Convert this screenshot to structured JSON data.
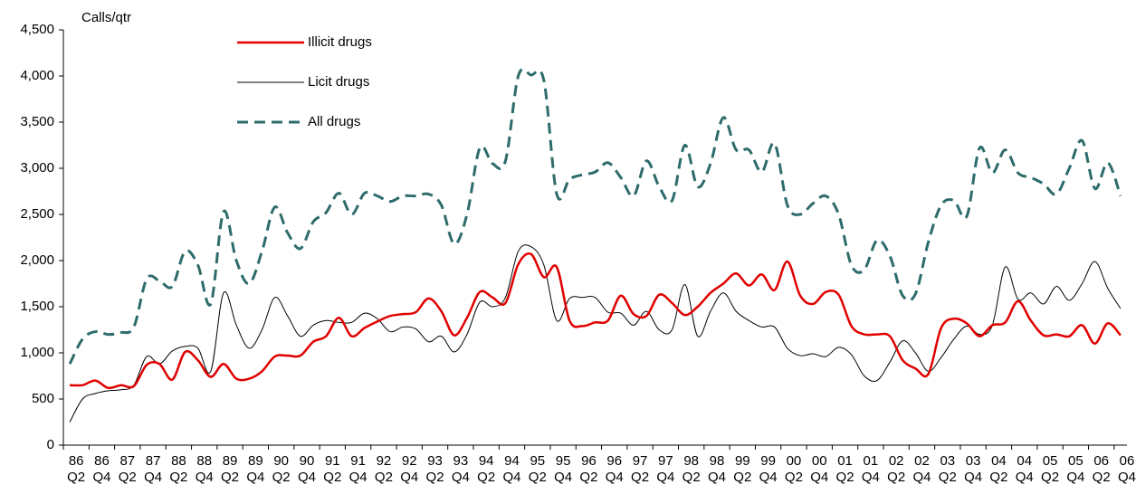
{
  "chart_data": {
    "type": "line",
    "y_label": "Calls/qtr",
    "categories": [
      "86 Q2",
      null,
      "86 Q4",
      null,
      "87 Q2",
      null,
      "87 Q4",
      null,
      "88 Q2",
      null,
      "88 Q4",
      null,
      "89 Q2",
      null,
      "89 Q4",
      null,
      "90 Q2",
      null,
      "90 Q4",
      null,
      "91 Q2",
      null,
      "91 Q4",
      null,
      "92 Q2",
      null,
      "92 Q4",
      null,
      "93 Q2",
      null,
      "93 Q4",
      null,
      "94 Q2",
      null,
      "94 Q4",
      null,
      "95 Q2",
      null,
      "95 Q4",
      null,
      "96 Q2",
      null,
      "96 Q4",
      null,
      "97 Q2",
      null,
      "97 Q4",
      null,
      "98 Q2",
      null,
      "98 Q4",
      null,
      "99 Q2",
      null,
      "99 Q4",
      null,
      "00 Q2",
      null,
      "00 Q4",
      null,
      "01 Q2",
      null,
      "01 Q4",
      null,
      "02 Q2",
      null,
      "02 Q4",
      null,
      "03 Q2",
      null,
      "03 Q4",
      null,
      "04 Q2",
      null,
      "04 Q4",
      null,
      "05 Q2",
      null,
      "05 Q4",
      null,
      "06 Q2",
      null,
      "06 Q4"
    ],
    "series": [
      {
        "name": "Illicit drugs",
        "color": "#e00000",
        "values": [
          650,
          650,
          700,
          620,
          650,
          640,
          870,
          880,
          710,
          1010,
          920,
          740,
          880,
          720,
          720,
          800,
          960,
          970,
          970,
          1120,
          1180,
          1380,
          1180,
          1270,
          1340,
          1400,
          1420,
          1440,
          1590,
          1450,
          1190,
          1380,
          1660,
          1600,
          1540,
          1960,
          2070,
          1820,
          1930,
          1350,
          1290,
          1330,
          1350,
          1620,
          1420,
          1400,
          1630,
          1540,
          1410,
          1500,
          1650,
          1750,
          1860,
          1730,
          1850,
          1680,
          1990,
          1620,
          1530,
          1660,
          1630,
          1290,
          1200,
          1200,
          1180,
          920,
          830,
          770,
          1270,
          1370,
          1320,
          1180,
          1300,
          1330,
          1560,
          1350,
          1190,
          1200,
          1180,
          1300,
          1100,
          1320,
          1190
        ]
      },
      {
        "name": "Licit drugs",
        "color": "#000000",
        "values": [
          250,
          500,
          560,
          590,
          600,
          650,
          960,
          880,
          1020,
          1070,
          1050,
          800,
          1650,
          1300,
          1050,
          1250,
          1600,
          1400,
          1180,
          1300,
          1350,
          1330,
          1330,
          1430,
          1370,
          1230,
          1280,
          1260,
          1120,
          1180,
          1010,
          1200,
          1550,
          1500,
          1600,
          2100,
          2150,
          1950,
          1350,
          1590,
          1600,
          1600,
          1440,
          1430,
          1300,
          1450,
          1250,
          1250,
          1740,
          1180,
          1450,
          1650,
          1450,
          1350,
          1280,
          1280,
          1050,
          970,
          990,
          960,
          1060,
          980,
          750,
          700,
          900,
          1130,
          1000,
          800,
          950,
          1150,
          1290,
          1200,
          1300,
          1930,
          1580,
          1650,
          1530,
          1720,
          1570,
          1750,
          1990,
          1700,
          1480
        ]
      },
      {
        "name": "All drugs",
        "color": "#2e6b6b",
        "values": [
          880,
          1150,
          1230,
          1200,
          1220,
          1280,
          1800,
          1780,
          1720,
          2100,
          1950,
          1530,
          2530,
          2000,
          1750,
          2100,
          2580,
          2300,
          2130,
          2420,
          2520,
          2730,
          2500,
          2730,
          2700,
          2640,
          2700,
          2700,
          2720,
          2600,
          2180,
          2500,
          3220,
          3050,
          3080,
          4000,
          4010,
          3950,
          2720,
          2880,
          2930,
          2960,
          3060,
          2900,
          2700,
          3080,
          2800,
          2650,
          3250,
          2800,
          3050,
          3550,
          3200,
          3200,
          2960,
          3270,
          2600,
          2500,
          2620,
          2700,
          2500,
          1950,
          1900,
          2220,
          2050,
          1620,
          1640,
          2200,
          2600,
          2650,
          2480,
          3220,
          2950,
          3200,
          2950,
          2900,
          2830,
          2720,
          3000,
          3300,
          2780,
          3060,
          2700
        ]
      }
    ],
    "ylim": [
      0,
      4500
    ],
    "yticks": [
      0,
      500,
      {
        "value": 1000,
        "label": "1,000"
      },
      {
        "value": 1500,
        "label": "1,500"
      },
      {
        "value": 2000,
        "label": "2,000"
      },
      {
        "value": 2500,
        "label": "2,500"
      },
      {
        "value": 3000,
        "label": "3,000"
      },
      {
        "value": 3500,
        "label": "3,500"
      },
      {
        "value": 4000,
        "label": "4,000"
      },
      {
        "value": 4500,
        "label": "4,500"
      }
    ],
    "grid": false
  }
}
